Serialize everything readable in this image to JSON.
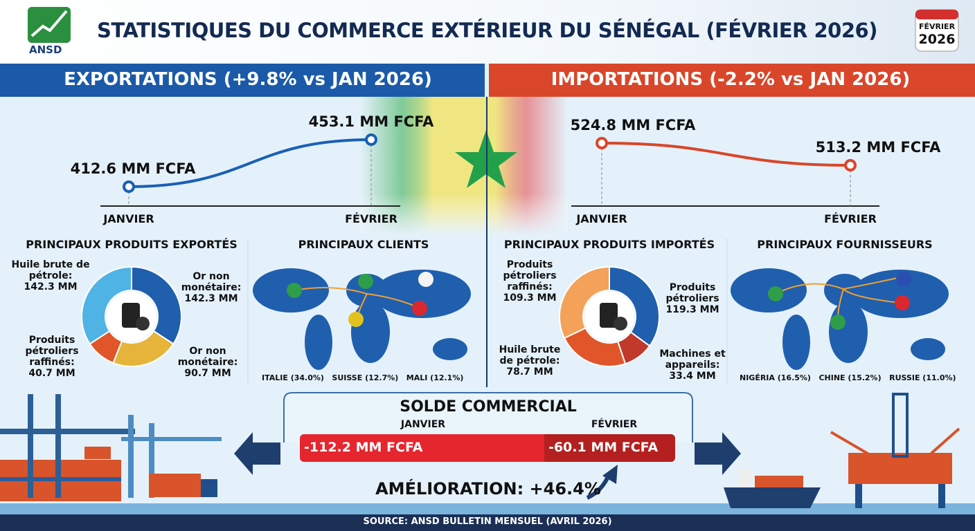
{
  "header": {
    "logo": "ANSD",
    "title": "STATISTIQUES DU COMMERCE EXTÉRIEUR DU SÉNÉGAL (FÉVRIER 2026)",
    "badge_month": "FÉVRIER",
    "badge_year": "2026"
  },
  "exports": {
    "heading": "EXPORTATIONS (+9.8% vs JAN 2026)",
    "trend": {
      "type": "line",
      "categories": [
        "JANVIER",
        "FÉVRIER"
      ],
      "values": [
        412.6,
        453.1
      ],
      "value_labels": [
        "412.6 MM FCFA",
        "453.1 MM FCFA"
      ],
      "color": "#1a5fb4"
    },
    "products": {
      "type": "pie",
      "title": "PRINCIPAUX PRODUITS EXPORTÉS",
      "categories": [
        "Or non monétaire:",
        "Or non monétaire:",
        "Produits pétroliers raffinés:",
        "Huile brute de pétrole:"
      ],
      "values": [
        142.3,
        90.7,
        40.7,
        142.3
      ],
      "value_labels": [
        "142.3 MM",
        "90.7 MM",
        "40.7 MM",
        "142.3 MM"
      ],
      "colors": [
        "#1f5fae",
        "#e6b43a",
        "#e0562a",
        "#4fb3e6"
      ]
    },
    "partners": {
      "title": "PRINCIPAUX CLIENTS",
      "items": [
        "ITALIE (34.0%)",
        "SUISSE (12.7%)",
        "MALI (12.1%)"
      ]
    }
  },
  "imports": {
    "heading": "IMPORTATIONS (-2.2% vs JAN 2026)",
    "trend": {
      "type": "line",
      "categories": [
        "JANVIER",
        "FÉVRIER"
      ],
      "values": [
        524.8,
        513.2
      ],
      "value_labels": [
        "524.8 MM FCFA",
        "513.2 MM FCFA"
      ],
      "color": "#d9462a"
    },
    "products": {
      "type": "pie",
      "title": "PRINCIPAUX PRODUITS IMPORTÉS",
      "categories": [
        "Produits pétroliers",
        "Machines et appareils:",
        "Huile brute de pétrole:",
        "Produits pétroliers raffinés:"
      ],
      "values": [
        119.3,
        33.4,
        78.7,
        109.3
      ],
      "value_labels": [
        "119.3 MM",
        "33.4 MM",
        "78.7 MM",
        "109.3 MM"
      ],
      "colors": [
        "#1f5fae",
        "#c0392b",
        "#e0562a",
        "#f4a259"
      ]
    },
    "partners": {
      "title": "PRINCIPAUX FOURNISSEURS",
      "items": [
        "NIGÉRIA (16.5%)",
        "CHINE (15.2%)",
        "RUSSIE (11.0%)"
      ]
    }
  },
  "balance": {
    "type": "bar",
    "title": "SOLDE COMMERCIAL",
    "categories": [
      "JANVIER",
      "FÉVRIER"
    ],
    "values": [
      -112.2,
      -60.1
    ],
    "value_labels": [
      "-112.2 MM FCFA",
      "-60.1 MM FCFA"
    ],
    "colors": [
      "#e5262f",
      "#b3201f"
    ],
    "improvement": "AMÉLIORATION: +46.4%"
  },
  "footer": "SOURCE: ANSD BULLETIN MENSUEL (AVRIL 2026)"
}
